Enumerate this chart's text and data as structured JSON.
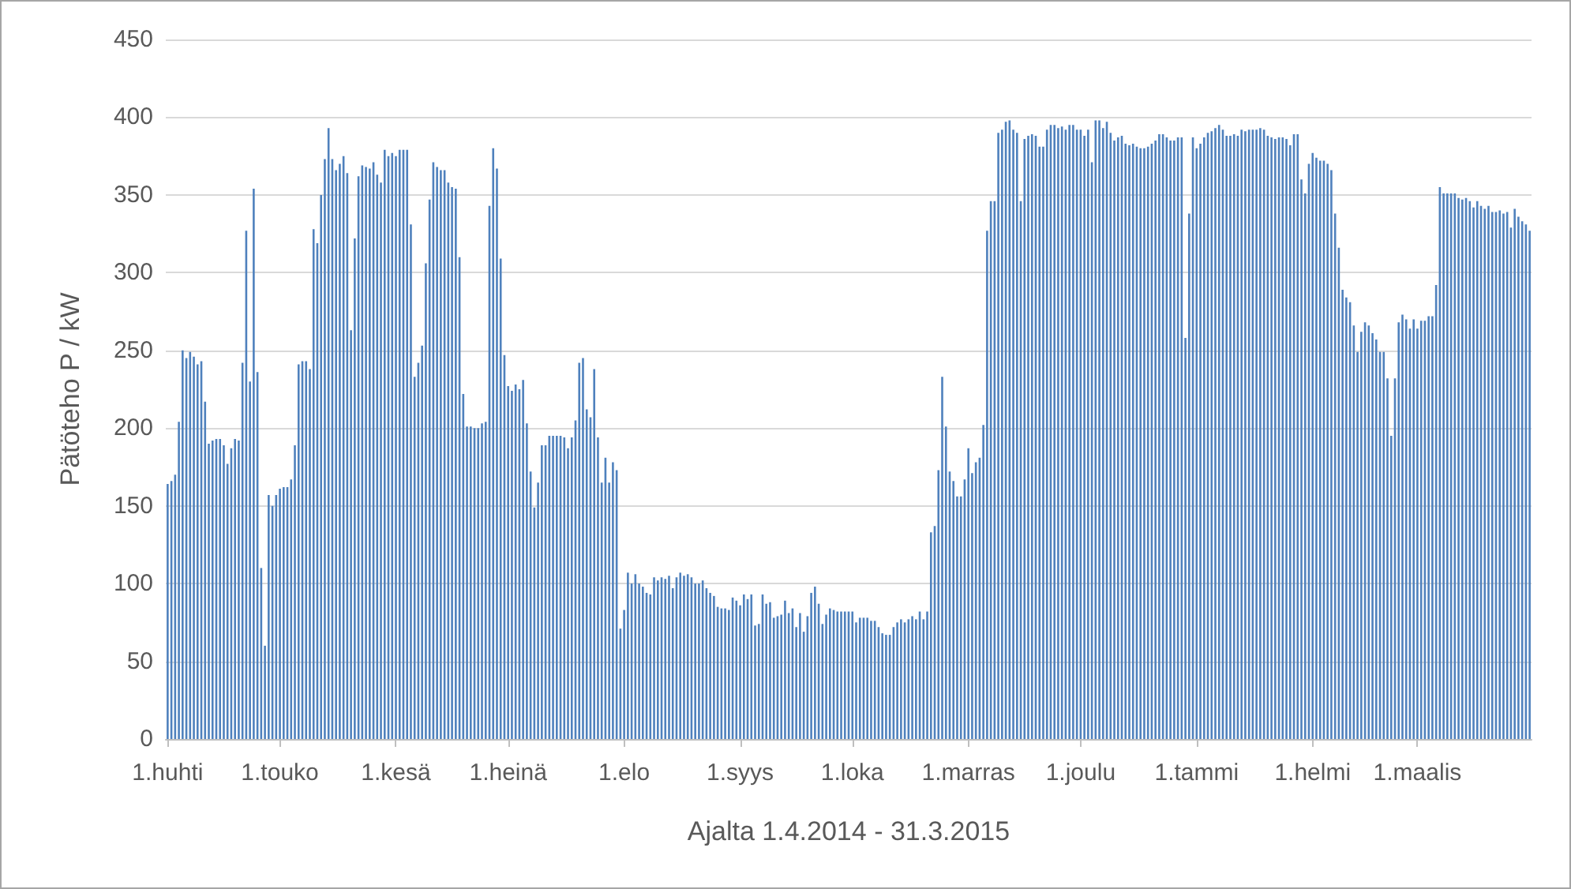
{
  "chart_data": {
    "type": "bar",
    "xlabel": "Ajalta 1.4.2014 - 31.3.2015",
    "ylabel": "Pätöteho P / kW",
    "color": "#4f81bd",
    "ylim": [
      0,
      450
    ],
    "yticks": [
      0,
      50,
      100,
      150,
      200,
      250,
      300,
      350,
      400,
      450
    ],
    "grid": "y",
    "categories": [
      "1.huhti",
      null,
      null,
      null,
      null,
      null,
      null,
      null,
      null,
      null,
      null,
      null,
      null,
      null,
      null,
      null,
      null,
      null,
      null,
      null,
      null,
      null,
      null,
      null,
      null,
      null,
      null,
      null,
      null,
      null,
      "1.touko",
      null,
      null,
      null,
      null,
      null,
      null,
      null,
      null,
      null,
      null,
      null,
      null,
      null,
      null,
      null,
      null,
      null,
      null,
      null,
      null,
      null,
      null,
      null,
      null,
      null,
      null,
      null,
      null,
      null,
      null,
      "1.kesä",
      null,
      null,
      null,
      null,
      null,
      null,
      null,
      null,
      null,
      null,
      null,
      null,
      null,
      null,
      null,
      null,
      null,
      null,
      null,
      null,
      null,
      null,
      null,
      null,
      null,
      null,
      null,
      null,
      null,
      "1.heinä",
      null,
      null,
      null,
      null,
      null,
      null,
      null,
      null,
      null,
      null,
      null,
      null,
      null,
      null,
      null,
      null,
      null,
      null,
      null,
      null,
      null,
      null,
      null,
      null,
      null,
      null,
      null,
      null,
      null,
      null,
      "1.elo",
      null,
      null,
      null,
      null,
      null,
      null,
      null,
      null,
      null,
      null,
      null,
      null,
      null,
      null,
      null,
      null,
      null,
      null,
      null,
      null,
      null,
      null,
      null,
      null,
      null,
      null,
      null,
      null,
      null,
      null,
      "1.syys",
      null,
      null,
      null,
      null,
      null,
      null,
      null,
      null,
      null,
      null,
      null,
      null,
      null,
      null,
      null,
      null,
      null,
      null,
      null,
      null,
      null,
      null,
      null,
      null,
      null,
      null,
      null,
      null,
      null,
      "1.loka",
      null,
      null,
      null,
      null,
      null,
      null,
      null,
      null,
      null,
      null,
      null,
      null,
      null,
      null,
      null,
      null,
      null,
      null,
      null,
      null,
      null,
      null,
      null,
      null,
      null,
      null,
      null,
      null,
      null,
      null,
      "1.marras",
      null,
      null,
      null,
      null,
      null,
      null,
      null,
      null,
      null,
      null,
      null,
      null,
      null,
      null,
      null,
      null,
      null,
      null,
      null,
      null,
      null,
      null,
      null,
      null,
      null,
      null,
      null,
      null,
      null,
      "1.joulu",
      null,
      null,
      null,
      null,
      null,
      null,
      null,
      null,
      null,
      null,
      null,
      null,
      null,
      null,
      null,
      null,
      null,
      null,
      null,
      null,
      null,
      null,
      null,
      null,
      null,
      null,
      null,
      null,
      null,
      null,
      "1.tammi",
      null,
      null,
      null,
      null,
      null,
      null,
      null,
      null,
      null,
      null,
      null,
      null,
      null,
      null,
      null,
      null,
      null,
      null,
      null,
      null,
      null,
      null,
      null,
      null,
      null,
      null,
      null,
      null,
      null,
      null,
      "1.helmi",
      null,
      null,
      null,
      null,
      null,
      null,
      null,
      null,
      null,
      null,
      null,
      null,
      null,
      null,
      null,
      null,
      null,
      null,
      null,
      null,
      null,
      null,
      null,
      null,
      null,
      null,
      null,
      "1.maalis",
      null,
      null,
      null,
      null,
      null,
      null,
      null,
      null,
      null,
      null,
      null,
      null,
      null,
      null,
      null,
      null,
      null,
      null,
      null,
      null,
      null,
      null,
      null,
      null,
      null,
      null,
      null,
      null,
      null,
      null
    ],
    "values": [
      164,
      166,
      170,
      204,
      250,
      245,
      249,
      246,
      241,
      243,
      217,
      190,
      192,
      193,
      193,
      189,
      177,
      187,
      193,
      192,
      242,
      327,
      230,
      354,
      236,
      110,
      60,
      157,
      150,
      157,
      161,
      162,
      162,
      167,
      189,
      241,
      243,
      243,
      238,
      328,
      319,
      350,
      373,
      393,
      373,
      366,
      370,
      375,
      364,
      263,
      322,
      362,
      369,
      368,
      367,
      371,
      363,
      358,
      379,
      375,
      377,
      375,
      379,
      379,
      379,
      331,
      233,
      242,
      253,
      306,
      347,
      371,
      368,
      366,
      366,
      358,
      355,
      354,
      310,
      222,
      201,
      201,
      200,
      200,
      203,
      204,
      343,
      380,
      367,
      309,
      247,
      227,
      224,
      228,
      225,
      231,
      203,
      172,
      149,
      165,
      189,
      189,
      195,
      195,
      195,
      195,
      194,
      187,
      194,
      205,
      242,
      245,
      212,
      207,
      238,
      194,
      165,
      181,
      165,
      178,
      173,
      71,
      83,
      107,
      100,
      106,
      100,
      98,
      94,
      93,
      104,
      102,
      104,
      103,
      105,
      97,
      104,
      107,
      105,
      106,
      104,
      100,
      100,
      102,
      97,
      94,
      92,
      85,
      84,
      84,
      83,
      91,
      89,
      86,
      93,
      90,
      93,
      73,
      74,
      93,
      87,
      88,
      78,
      79,
      80,
      89,
      81,
      84,
      72,
      81,
      69,
      79,
      94,
      98,
      87,
      74,
      80,
      84,
      83,
      82,
      82,
      82,
      82,
      82,
      75,
      78,
      78,
      78,
      76,
      76,
      72,
      68,
      67,
      67,
      72,
      75,
      77,
      75,
      77,
      79,
      77,
      82,
      77,
      82,
      133,
      137,
      173,
      233,
      201,
      172,
      166,
      156,
      156,
      167,
      187,
      171,
      178,
      181,
      202,
      327,
      346,
      346,
      390,
      392,
      397,
      398,
      392,
      390,
      346,
      386,
      388,
      389,
      388,
      381,
      381,
      392,
      395,
      395,
      393,
      394,
      392,
      395,
      395,
      392,
      392,
      388,
      392,
      371,
      398,
      398,
      393,
      397,
      390,
      385,
      387,
      388,
      383,
      382,
      383,
      381,
      380,
      380,
      381,
      383,
      385,
      389,
      389,
      387,
      385,
      385,
      387,
      387,
      258,
      338,
      387,
      380,
      383,
      387,
      390,
      391,
      393,
      395,
      392,
      388,
      388,
      389,
      388,
      392,
      391,
      392,
      392,
      392,
      393,
      392,
      388,
      387,
      386,
      387,
      387,
      386,
      382,
      389,
      389,
      360,
      351,
      370,
      377,
      374,
      372,
      372,
      370,
      366,
      338,
      316,
      289,
      284,
      281,
      266,
      249,
      262,
      268,
      266,
      261,
      257,
      249,
      249,
      232,
      195,
      232,
      268,
      273,
      270,
      264,
      270,
      264,
      269,
      269,
      272,
      272,
      292,
      355,
      351,
      351,
      351,
      351,
      348,
      347,
      348,
      346,
      342,
      346,
      343,
      341,
      343,
      339,
      339,
      340,
      338,
      339,
      329,
      341,
      336,
      333,
      331,
      327
    ]
  }
}
